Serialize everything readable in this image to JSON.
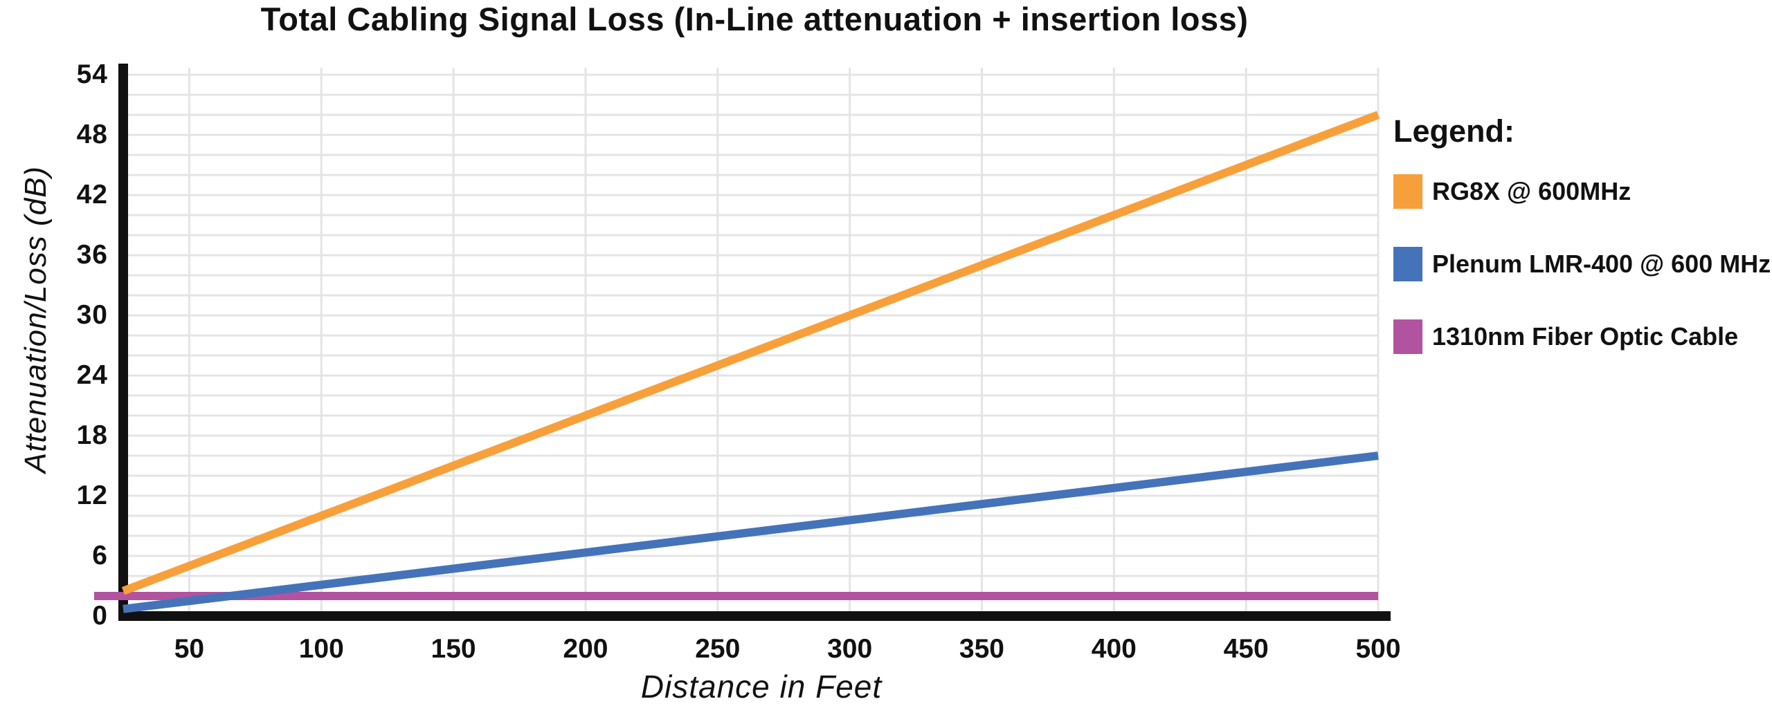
{
  "chart_data": {
    "type": "line",
    "title": "Total Cabling Signal Loss (In-Line attenuation + insertion loss)",
    "xlabel": "Distance in Feet",
    "ylabel": "Attenuation/Loss (dB)",
    "xlim": [
      25,
      500
    ],
    "ylim": [
      0,
      54.7
    ],
    "x_ticks": [
      50,
      100,
      150,
      200,
      250,
      300,
      350,
      400,
      450,
      500
    ],
    "y_ticks": [
      0,
      6,
      12,
      18,
      24,
      30,
      36,
      42,
      48,
      54
    ],
    "grid": {
      "shown": true,
      "x_interval_feet": 50,
      "y_interval_db": 2,
      "color": "#E4E4E4"
    },
    "axis_color": "#111111",
    "text_color": "#111111",
    "legend": {
      "title": "Legend:",
      "position": "right"
    },
    "series": [
      {
        "name": "1310nm Fiber Optic Cable",
        "color": "#B2539F",
        "x": [
          25,
          500
        ],
        "y": [
          2,
          2
        ],
        "note_overflows_left_axis": true
      },
      {
        "name": "Plenum LMR-400 @ 600 MHz",
        "color": "#4573B9",
        "x": [
          25,
          500
        ],
        "y": [
          0.7,
          16
        ]
      },
      {
        "name": "RG8X @ 600MHz",
        "color": "#F7A03B",
        "x": [
          25,
          500
        ],
        "y": [
          2.5,
          50
        ]
      }
    ],
    "legend_order": [
      2,
      1,
      0
    ]
  }
}
